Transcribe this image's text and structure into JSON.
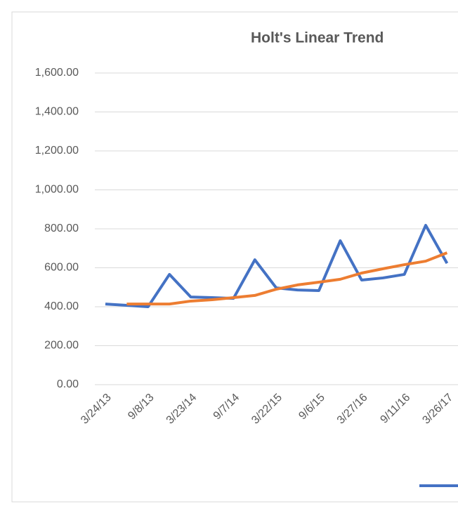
{
  "chart_data": {
    "type": "line",
    "title": "Holt's Linear Trend",
    "categories": [
      "3/24/13",
      null,
      "9/8/13",
      null,
      "3/23/14",
      null,
      "9/7/14",
      null,
      "3/22/15",
      null,
      "9/6/15",
      null,
      "3/27/16",
      null,
      "9/11/16",
      null,
      "3/26/17"
    ],
    "series": [
      {
        "color": "#4472c4",
        "values": [
          414,
          407,
          400,
          566,
          450,
          447,
          443,
          641,
          497,
          486,
          483,
          739,
          537,
          548,
          566,
          818,
          623
        ]
      },
      {
        "color": "#ed7d31",
        "values": [
          null,
          414,
          414,
          414,
          429,
          436,
          447,
          458,
          490,
          512,
          526,
          541,
          573,
          595,
          616,
          634,
          677
        ]
      }
    ],
    "ylim": [
      0,
      1600
    ],
    "yticks": [
      {
        "value": 0,
        "label": "0.00"
      },
      {
        "value": 200,
        "label": "200.00"
      },
      {
        "value": 400,
        "label": "400.00"
      },
      {
        "value": 600,
        "label": "600.00"
      },
      {
        "value": 800,
        "label": "800.00"
      },
      {
        "value": 1000,
        "label": "1,000.00"
      },
      {
        "value": 1200,
        "label": "1,200.00"
      },
      {
        "value": 1400,
        "label": "1,400.00"
      },
      {
        "value": 1600,
        "label": "1,600.00"
      }
    ],
    "grid": true
  }
}
